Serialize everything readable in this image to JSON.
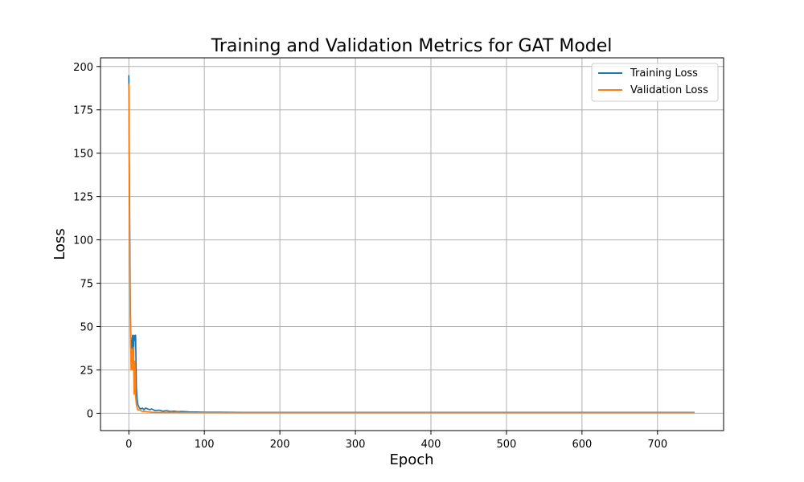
{
  "chart_data": {
    "type": "line",
    "title": "Training and Validation Metrics for GAT Model",
    "xlabel": "Epoch",
    "ylabel": "Loss",
    "xlim": [
      -37.5,
      787.5
    ],
    "ylim": [
      -10,
      205
    ],
    "xticks": [
      0,
      100,
      200,
      300,
      400,
      500,
      600,
      700
    ],
    "yticks": [
      0,
      25,
      50,
      75,
      100,
      125,
      150,
      175,
      200
    ],
    "grid": true,
    "legend_position": "top-right",
    "series": [
      {
        "name": "Training Loss",
        "color": "#1f77b4",
        "x": [
          0,
          1,
          2,
          3,
          4,
          5,
          6,
          7,
          8,
          9,
          10,
          11,
          12,
          14,
          16,
          18,
          20,
          22,
          25,
          28,
          30,
          35,
          40,
          45,
          50,
          55,
          60,
          65,
          70,
          80,
          90,
          100,
          120,
          150,
          200,
          300,
          400,
          500,
          600,
          700,
          749
        ],
        "y": [
          195,
          120,
          60,
          30,
          40,
          45,
          28,
          45,
          42,
          45,
          15,
          8,
          5,
          3,
          2.5,
          3,
          2,
          3,
          2.5,
          2,
          2.5,
          1.5,
          1.8,
          1.2,
          1.5,
          1.0,
          1.2,
          0.9,
          1.0,
          0.8,
          0.7,
          0.6,
          0.6,
          0.5,
          0.5,
          0.5,
          0.5,
          0.5,
          0.5,
          0.5,
          0.5
        ]
      },
      {
        "name": "Validation Loss",
        "color": "#ff7f0e",
        "x": [
          0,
          1,
          2,
          3,
          4,
          5,
          6,
          7,
          8,
          9,
          10,
          11,
          12,
          14,
          16,
          18,
          20,
          22,
          25,
          28,
          30,
          35,
          40,
          45,
          50,
          55,
          60,
          65,
          70,
          80,
          90,
          100,
          120,
          150,
          200,
          300,
          400,
          500,
          600,
          700,
          749
        ],
        "y": [
          190,
          100,
          50,
          25,
          37,
          25,
          38,
          11,
          30,
          10,
          5,
          3,
          2,
          2,
          1.5,
          1,
          1,
          1,
          0.8,
          0.7,
          0.6,
          0.5,
          0.5,
          0.5,
          0.5,
          0.5,
          0.5,
          0.5,
          0.4,
          0.4,
          0.4,
          0.4,
          0.4,
          0.4,
          0.4,
          0.4,
          0.4,
          0.4,
          0.4,
          0.4,
          0.4
        ]
      }
    ]
  }
}
